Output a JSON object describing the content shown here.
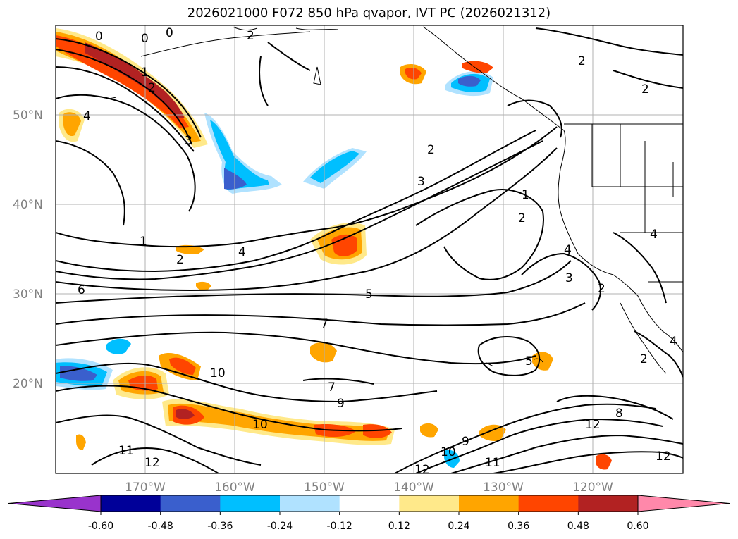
{
  "title": "2026021000 F072 850 hPa qvapor, IVT PC (2026021312)",
  "axes": {
    "lon_labels": [
      "170°W",
      "160°W",
      "150°W",
      "140°W",
      "130°W",
      "120°W"
    ],
    "lat_labels": [
      "50°N",
      "40°N",
      "30°N",
      "20°N"
    ],
    "lon_range": [
      -180,
      -110
    ],
    "lat_range": [
      10,
      60
    ]
  },
  "contour_labels": [
    "0",
    "0",
    "0",
    "2",
    "2",
    "1",
    "2",
    "4",
    "3",
    "2",
    "3",
    "1",
    "2",
    "4",
    "6",
    "5",
    "1",
    "2",
    "4",
    "2",
    "3",
    "2",
    "4",
    "7",
    "5",
    "10",
    "7",
    "9",
    "10",
    "11",
    "12",
    "9",
    "10",
    "11",
    "12",
    "2",
    "12",
    "12",
    "8",
    "4"
  ],
  "colorbar": {
    "ticks": [
      "-0.60",
      "-0.48",
      "-0.36",
      "-0.24",
      "-0.12",
      "0.12",
      "0.24",
      "0.36",
      "0.48",
      "0.60"
    ],
    "colors": [
      "#9933cc",
      "#000099",
      "#3a5fcd",
      "#00bfff",
      "#b0e2ff",
      "#ffffff",
      "#ffe98a",
      "#ffa500",
      "#ff4500",
      "#b22222",
      "#ff88aa"
    ]
  }
}
